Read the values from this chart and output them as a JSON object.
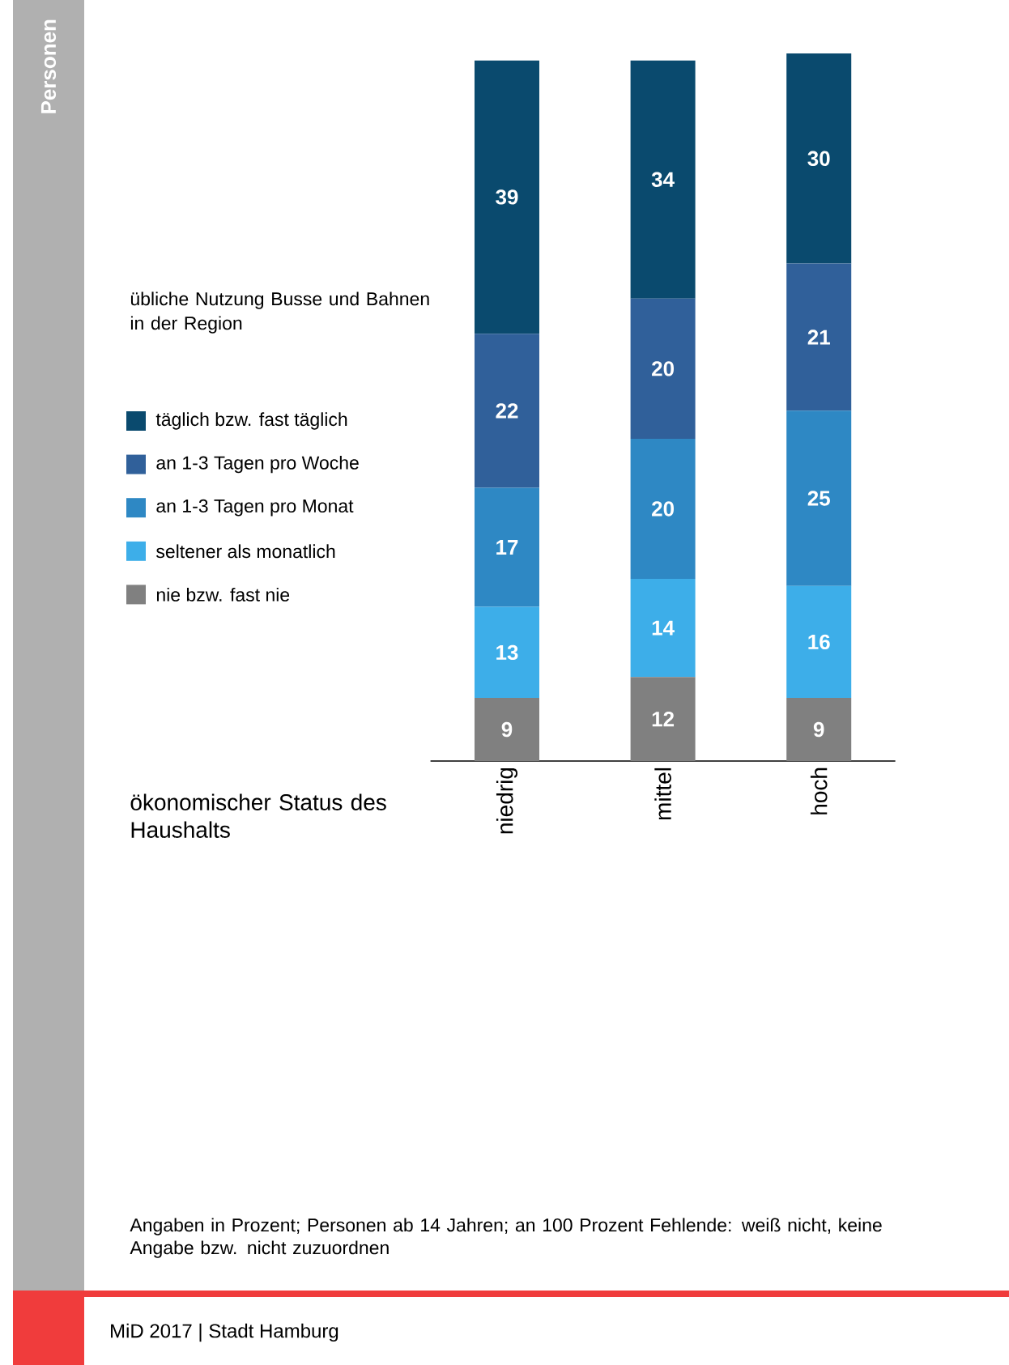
{
  "chart_data": {
    "type": "bar",
    "stacked": true,
    "data_labels": true,
    "legend": "left",
    "xlabel": "ökonomischer Status des Haushalts",
    "legend_title": "übliche Nutzung Busse und Bahnen in der Region",
    "categories": [
      "niedrig",
      "mittel",
      "hoch"
    ],
    "series": [
      {
        "name": "nie bzw. fast nie",
        "color": "#808080",
        "values": [
          9,
          12,
          9
        ]
      },
      {
        "name": "seltener als monatlich",
        "color": "#3daee9",
        "values": [
          13,
          14,
          16
        ]
      },
      {
        "name": "an 1-3 Tagen pro Monat",
        "color": "#2e88c4",
        "values": [
          17,
          20,
          25
        ]
      },
      {
        "name": "an 1-3 Tagen pro Woche",
        "color": "#30609a",
        "values": [
          22,
          20,
          21
        ]
      },
      {
        "name": "täglich bzw. fast täglich",
        "color": "#0a4a6e",
        "values": [
          39,
          34,
          30
        ]
      }
    ],
    "annotations": [
      "Personen",
      "Angaben in Prozent; Personen ab 14 Jahren; an 100 Prozent Fehlende: weiß nicht, keine Angabe bzw. nicht zuzuordnen",
      "MiD 2017 | Stadt Hamburg"
    ]
  }
}
